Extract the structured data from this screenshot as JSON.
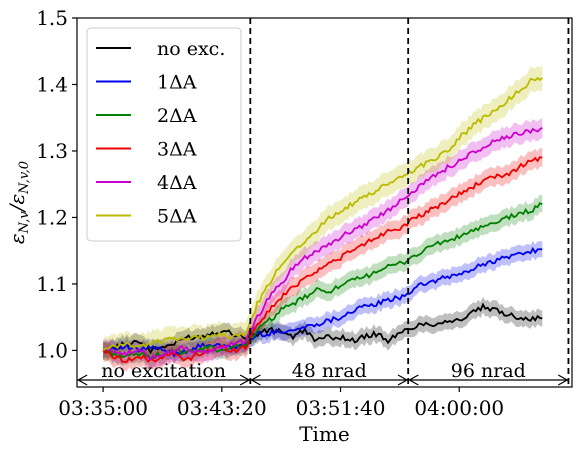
{
  "chart_data": {
    "type": "line",
    "xlabel": "Time",
    "ylabel": "ε_{N,v}/ε_{N,v,0}",
    "ylabel_main": "ε",
    "ylabel_sub": "N,v",
    "ylabel_slash": "/",
    "ylabel_main2": "ε",
    "ylabel_sub2": "N,v,0",
    "x_ticks": [
      "03:35:00",
      "03:43:20",
      "03:51:40",
      "04:00:00"
    ],
    "x_tick_seconds": [
      0,
      500,
      1000,
      1500
    ],
    "xlim_seconds": [
      -110,
      1975
    ],
    "ylim": [
      0.945,
      1.5
    ],
    "y_ticks": [
      "1.0",
      "1.1",
      "1.2",
      "1.3",
      "1.4",
      "1.5"
    ],
    "y_tick_values": [
      1.0,
      1.1,
      1.2,
      1.3,
      1.4,
      1.5
    ],
    "grid": false,
    "legend_position": "upper-left",
    "band_opacity": 0.25,
    "vlines_seconds": [
      620,
      1285,
      1960
    ],
    "annotations": [
      {
        "text": "no excitation",
        "from_seconds": -105,
        "to_seconds": 615
      },
      {
        "text": "48 nrad",
        "from_seconds": 625,
        "to_seconds": 1280
      },
      {
        "text": "96 nrad",
        "from_seconds": 1290,
        "to_seconds": 1955
      }
    ],
    "series": [
      {
        "name": "no exc.",
        "color": "#000000",
        "band": 0.012,
        "points": [
          [
            0,
            1.0
          ],
          [
            50,
            1.005
          ],
          [
            100,
            1.01
          ],
          [
            150,
            1.015
          ],
          [
            200,
            1.0
          ],
          [
            250,
            1.005
          ],
          [
            300,
            1.01
          ],
          [
            350,
            1.02
          ],
          [
            400,
            1.02
          ],
          [
            450,
            1.025
          ],
          [
            500,
            1.03
          ],
          [
            550,
            1.025
          ],
          [
            600,
            1.02
          ],
          [
            650,
            1.025
          ],
          [
            700,
            1.03
          ],
          [
            750,
            1.03
          ],
          [
            800,
            1.02
          ],
          [
            850,
            1.03
          ],
          [
            900,
            1.015
          ],
          [
            950,
            1.02
          ],
          [
            1000,
            1.02
          ],
          [
            1050,
            1.015
          ],
          [
            1100,
            1.02
          ],
          [
            1150,
            1.025
          ],
          [
            1200,
            1.015
          ],
          [
            1250,
            1.025
          ],
          [
            1300,
            1.035
          ],
          [
            1350,
            1.04
          ],
          [
            1400,
            1.04
          ],
          [
            1450,
            1.045
          ],
          [
            1500,
            1.045
          ],
          [
            1550,
            1.055
          ],
          [
            1600,
            1.065
          ],
          [
            1650,
            1.06
          ],
          [
            1700,
            1.055
          ],
          [
            1750,
            1.05
          ],
          [
            1800,
            1.048
          ],
          [
            1850,
            1.048
          ]
        ]
      },
      {
        "name": "1ΔA",
        "color": "#0000ee",
        "band": 0.012,
        "points": [
          [
            0,
            1.0
          ],
          [
            50,
            1.005
          ],
          [
            100,
            1.005
          ],
          [
            150,
            1.0
          ],
          [
            200,
            1.005
          ],
          [
            250,
            1.0
          ],
          [
            300,
            0.995
          ],
          [
            350,
            1.0
          ],
          [
            400,
            1.005
          ],
          [
            450,
            1.01
          ],
          [
            500,
            1.005
          ],
          [
            550,
            1.005
          ],
          [
            600,
            1.01
          ],
          [
            650,
            1.025
          ],
          [
            700,
            1.025
          ],
          [
            750,
            1.03
          ],
          [
            800,
            1.03
          ],
          [
            850,
            1.035
          ],
          [
            900,
            1.04
          ],
          [
            950,
            1.045
          ],
          [
            1000,
            1.05
          ],
          [
            1050,
            1.06
          ],
          [
            1100,
            1.065
          ],
          [
            1150,
            1.07
          ],
          [
            1200,
            1.075
          ],
          [
            1250,
            1.08
          ],
          [
            1300,
            1.09
          ],
          [
            1350,
            1.1
          ],
          [
            1400,
            1.105
          ],
          [
            1450,
            1.11
          ],
          [
            1500,
            1.115
          ],
          [
            1550,
            1.12
          ],
          [
            1600,
            1.13
          ],
          [
            1650,
            1.135
          ],
          [
            1700,
            1.14
          ],
          [
            1750,
            1.145
          ],
          [
            1800,
            1.15
          ],
          [
            1850,
            1.152
          ]
        ]
      },
      {
        "name": "2ΔA",
        "color": "#008000",
        "band": 0.013,
        "points": [
          [
            0,
            1.0
          ],
          [
            50,
            0.995
          ],
          [
            100,
            0.99
          ],
          [
            150,
            0.995
          ],
          [
            200,
            0.99
          ],
          [
            250,
            0.995
          ],
          [
            300,
            1.0
          ],
          [
            350,
            0.995
          ],
          [
            400,
            1.0
          ],
          [
            450,
            1.005
          ],
          [
            500,
            1.0
          ],
          [
            550,
            1.005
          ],
          [
            600,
            1.01
          ],
          [
            650,
            1.03
          ],
          [
            700,
            1.045
          ],
          [
            750,
            1.06
          ],
          [
            800,
            1.07
          ],
          [
            850,
            1.08
          ],
          [
            900,
            1.09
          ],
          [
            950,
            1.09
          ],
          [
            1000,
            1.095
          ],
          [
            1050,
            1.105
          ],
          [
            1100,
            1.11
          ],
          [
            1150,
            1.12
          ],
          [
            1200,
            1.125
          ],
          [
            1250,
            1.13
          ],
          [
            1300,
            1.14
          ],
          [
            1350,
            1.15
          ],
          [
            1400,
            1.16
          ],
          [
            1450,
            1.165
          ],
          [
            1500,
            1.17
          ],
          [
            1550,
            1.18
          ],
          [
            1600,
            1.185
          ],
          [
            1650,
            1.19
          ],
          [
            1700,
            1.2
          ],
          [
            1750,
            1.205
          ],
          [
            1800,
            1.21
          ],
          [
            1850,
            1.22
          ]
        ]
      },
      {
        "name": "3ΔA",
        "color": "#ee0000",
        "band": 0.014,
        "points": [
          [
            0,
            1.0
          ],
          [
            50,
            0.99
          ],
          [
            100,
            0.985
          ],
          [
            150,
            0.99
          ],
          [
            200,
            0.985
          ],
          [
            250,
            0.99
          ],
          [
            300,
            0.995
          ],
          [
            350,
            0.985
          ],
          [
            400,
            0.995
          ],
          [
            450,
            1.0
          ],
          [
            500,
            1.005
          ],
          [
            550,
            1.0
          ],
          [
            600,
            1.005
          ],
          [
            650,
            1.04
          ],
          [
            700,
            1.06
          ],
          [
            750,
            1.08
          ],
          [
            800,
            1.095
          ],
          [
            850,
            1.11
          ],
          [
            900,
            1.12
          ],
          [
            950,
            1.13
          ],
          [
            1000,
            1.14
          ],
          [
            1050,
            1.15
          ],
          [
            1100,
            1.16
          ],
          [
            1150,
            1.17
          ],
          [
            1200,
            1.18
          ],
          [
            1250,
            1.185
          ],
          [
            1300,
            1.195
          ],
          [
            1350,
            1.205
          ],
          [
            1400,
            1.215
          ],
          [
            1450,
            1.225
          ],
          [
            1500,
            1.235
          ],
          [
            1550,
            1.245
          ],
          [
            1600,
            1.255
          ],
          [
            1650,
            1.26
          ],
          [
            1700,
            1.265
          ],
          [
            1750,
            1.275
          ],
          [
            1800,
            1.285
          ],
          [
            1850,
            1.29
          ]
        ]
      },
      {
        "name": "4ΔA",
        "color": "#cc00cc",
        "band": 0.015,
        "points": [
          [
            0,
            1.0
          ],
          [
            50,
            1.0
          ],
          [
            100,
            0.995
          ],
          [
            150,
            1.0
          ],
          [
            200,
            0.99
          ],
          [
            250,
            0.995
          ],
          [
            300,
            1.0
          ],
          [
            350,
            1.005
          ],
          [
            400,
            0.995
          ],
          [
            450,
            1.0
          ],
          [
            500,
            1.005
          ],
          [
            550,
            1.01
          ],
          [
            600,
            1.015
          ],
          [
            650,
            1.05
          ],
          [
            700,
            1.08
          ],
          [
            750,
            1.1
          ],
          [
            800,
            1.125
          ],
          [
            850,
            1.14
          ],
          [
            900,
            1.15
          ],
          [
            950,
            1.16
          ],
          [
            1000,
            1.17
          ],
          [
            1050,
            1.18
          ],
          [
            1100,
            1.19
          ],
          [
            1150,
            1.2
          ],
          [
            1200,
            1.21
          ],
          [
            1250,
            1.225
          ],
          [
            1300,
            1.24
          ],
          [
            1350,
            1.25
          ],
          [
            1400,
            1.265
          ],
          [
            1450,
            1.275
          ],
          [
            1500,
            1.285
          ],
          [
            1550,
            1.295
          ],
          [
            1600,
            1.305
          ],
          [
            1650,
            1.315
          ],
          [
            1700,
            1.32
          ],
          [
            1750,
            1.325
          ],
          [
            1800,
            1.33
          ],
          [
            1850,
            1.335
          ]
        ]
      },
      {
        "name": "5ΔA",
        "color": "#bbbb00",
        "band": 0.018,
        "points": [
          [
            0,
            1.0
          ],
          [
            50,
            1.005
          ],
          [
            100,
            1.01
          ],
          [
            150,
            1.005
          ],
          [
            200,
            1.01
          ],
          [
            250,
            1.015
          ],
          [
            300,
            1.02
          ],
          [
            350,
            1.015
          ],
          [
            400,
            1.02
          ],
          [
            450,
            1.02
          ],
          [
            500,
            1.025
          ],
          [
            550,
            1.02
          ],
          [
            600,
            1.025
          ],
          [
            650,
            1.07
          ],
          [
            700,
            1.1
          ],
          [
            750,
            1.13
          ],
          [
            800,
            1.15
          ],
          [
            850,
            1.165
          ],
          [
            900,
            1.18
          ],
          [
            950,
            1.2
          ],
          [
            1000,
            1.21
          ],
          [
            1050,
            1.22
          ],
          [
            1100,
            1.23
          ],
          [
            1150,
            1.24
          ],
          [
            1200,
            1.25
          ],
          [
            1250,
            1.26
          ],
          [
            1300,
            1.27
          ],
          [
            1350,
            1.28
          ],
          [
            1400,
            1.29
          ],
          [
            1450,
            1.3
          ],
          [
            1500,
            1.32
          ],
          [
            1550,
            1.335
          ],
          [
            1600,
            1.35
          ],
          [
            1650,
            1.36
          ],
          [
            1700,
            1.375
          ],
          [
            1750,
            1.39
          ],
          [
            1800,
            1.405
          ],
          [
            1850,
            1.41
          ]
        ]
      }
    ]
  }
}
